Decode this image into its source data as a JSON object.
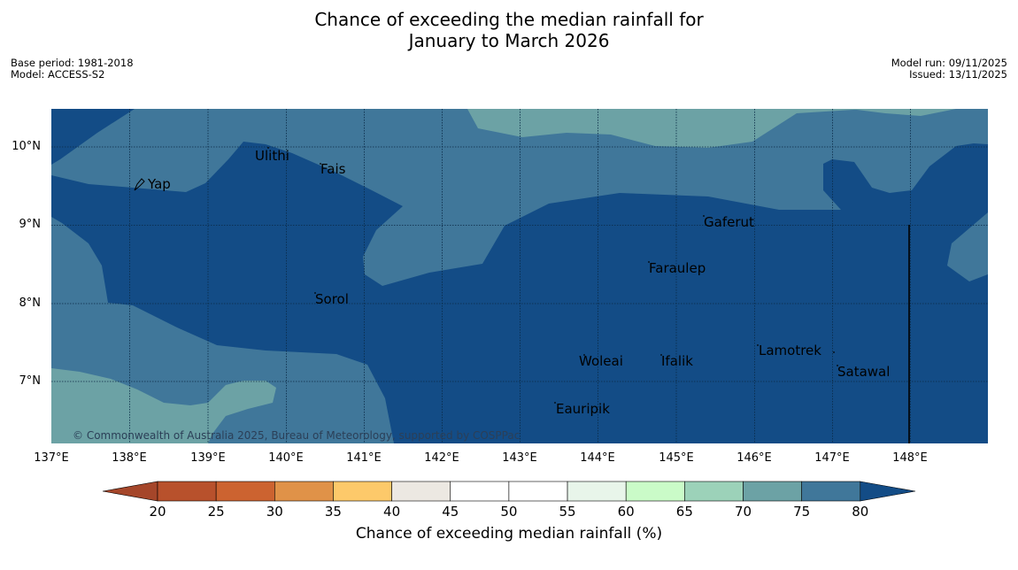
{
  "title": {
    "line1": "Chance of exceeding the median rainfall for",
    "line2": "January to March 2026"
  },
  "meta": {
    "base_period": "Base period: 1981-2018",
    "model": "Model: ACCESS-S2",
    "model_run": "Model run: 09/11/2025",
    "issued": "Issued: 13/11/2025"
  },
  "map": {
    "lat_labels": [
      "10°N",
      "9°N",
      "8°N",
      "7°N"
    ],
    "lon_labels": [
      "137°E",
      "138°E",
      "139°E",
      "140°E",
      "141°E",
      "142°E",
      "143°E",
      "144°E",
      "145°E",
      "146°E",
      "147°E",
      "148°E"
    ],
    "places": [
      {
        "name": "Yap"
      },
      {
        "name": "Ulithi"
      },
      {
        "name": "Fais"
      },
      {
        "name": "Gaferut"
      },
      {
        "name": "Faraulep"
      },
      {
        "name": "Sorol"
      },
      {
        "name": "Lamotrek"
      },
      {
        "name": "Woleai"
      },
      {
        "name": "Ifalik"
      },
      {
        "name": "Satawal"
      },
      {
        "name": "Eauripik"
      }
    ],
    "copyright": "© Commonwealth of Australia 2025, Bureau of Meteorology, supported by COSPPac"
  },
  "colorbar": {
    "ticks": [
      "20",
      "25",
      "30",
      "35",
      "40",
      "45",
      "50",
      "55",
      "60",
      "65",
      "70",
      "75",
      "80"
    ],
    "label": "Chance of exceeding median rainfall (%)",
    "colors": [
      "#a5462a",
      "#b8512c",
      "#cc6330",
      "#e09248",
      "#fdc96a",
      "#ece8e2",
      "#ffffff",
      "#ffffff",
      "#e8f5ea",
      "#cafbc8",
      "#9cd2b9",
      "#6ca2a5",
      "#40779a",
      "#134c86"
    ]
  },
  "colors": {
    "cat_80_plus": "#134c86",
    "cat_75_80": "#40779a",
    "cat_70_75": "#6ca2a5"
  }
}
